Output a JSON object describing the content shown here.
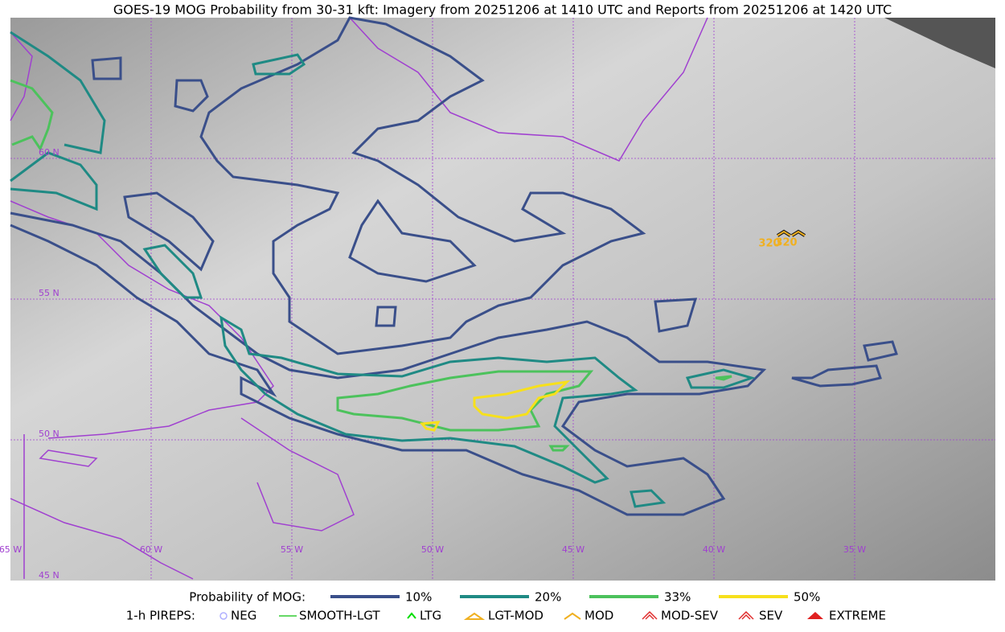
{
  "title": "GOES-19 MOG Probability from 30-31 kft: Imagery from 20251206 at 1410 UTC and Reports from 20251206 at 1420 UTC",
  "grid_labels": {
    "latitudes": [
      "60 N",
      "55 N",
      "50 N",
      "45 N"
    ],
    "longitudes": [
      "65 W",
      "60 W",
      "55 W",
      "50 W",
      "45 W",
      "40 W",
      "35 W"
    ]
  },
  "legend": {
    "title": "Probability of MOG:",
    "items": [
      {
        "label": "10%",
        "color": "#3a4f8a"
      },
      {
        "label": "20%",
        "color": "#1f8a84"
      },
      {
        "label": "33%",
        "color": "#4cc25c"
      },
      {
        "label": "50%",
        "color": "#f7e01c"
      }
    ]
  },
  "pirep_legend": {
    "title": "1-h PIREPS:",
    "items": [
      {
        "label": "NEG",
        "color": "#b0b0ff"
      },
      {
        "label": "SMOOTH-LGT",
        "color": "#33cc33"
      },
      {
        "label": "LTG",
        "color": "#00dd00"
      },
      {
        "label": "LGT-MOD",
        "color": "#f0b020"
      },
      {
        "label": "MOD",
        "color": "#f0b020"
      },
      {
        "label": "MOD-SEV",
        "color": "#e03030"
      },
      {
        "label": "SEV",
        "color": "#e03030"
      },
      {
        "label": "EXTREME",
        "color": "#e02020"
      }
    ]
  },
  "reports": [
    {
      "label": "320"
    },
    {
      "label": "320"
    }
  ]
}
